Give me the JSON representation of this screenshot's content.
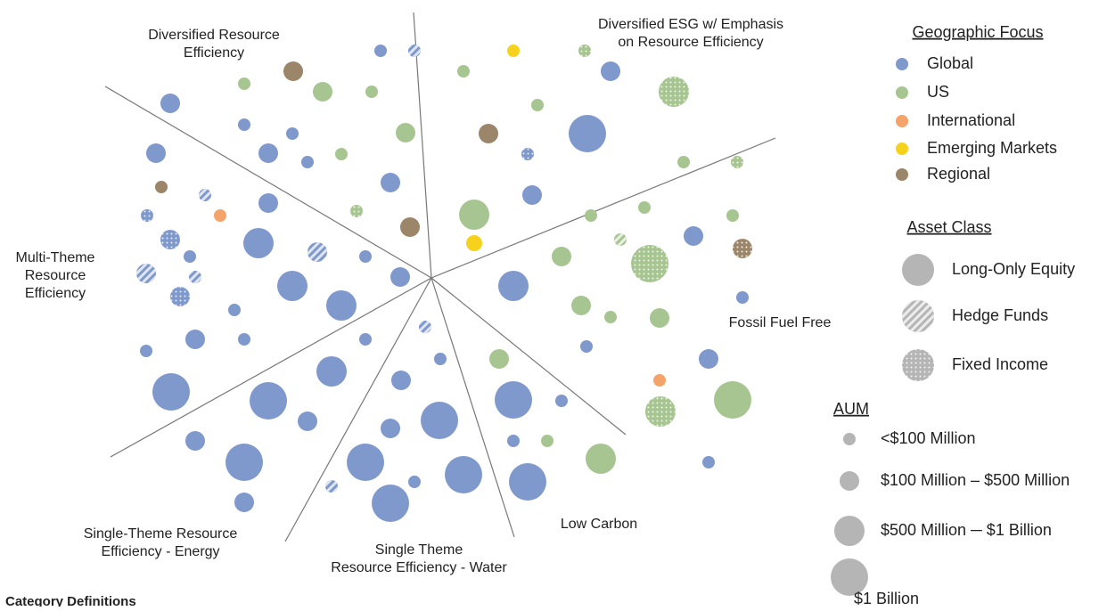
{
  "sectors": [
    {
      "label": [
        "Diversified Resource",
        "Efficiency"
      ]
    },
    {
      "label": [
        "Diversified ESG w/ Emphasis",
        "on Resource Efficiency"
      ]
    },
    {
      "label": [
        "Multi-Theme",
        "Resource",
        "Efficiency"
      ]
    },
    {
      "label": [
        "Fossil Fuel Free"
      ]
    },
    {
      "label": [
        "Single-Theme Resource",
        "Efficiency - Energy"
      ]
    },
    {
      "label": [
        "Single Theme",
        "Resource Efficiency - Water"
      ]
    },
    {
      "label": [
        "Low Carbon"
      ]
    }
  ],
  "legend": {
    "geographic": {
      "title": "Geographic Focus",
      "items": [
        {
          "label": "Global",
          "color": "#7f99cc"
        },
        {
          "label": "US",
          "color": "#a7c590"
        },
        {
          "label": "International",
          "color": "#f4a46a"
        },
        {
          "label": "Emerging Markets",
          "color": "#f6d21c"
        },
        {
          "label": "Regional",
          "color": "#9c866a"
        }
      ]
    },
    "asset_class": {
      "title": "Asset Class",
      "items": [
        "Long-Only Equity",
        "Hedge Funds",
        "Fixed Income"
      ]
    },
    "aum": {
      "title": "AUM",
      "items": [
        "<$100 Million",
        "$100 Million – $500 Million",
        "$500 Million ─ $1 Billion",
        "$1 Billion"
      ]
    }
  },
  "footer": "Category Definitions"
}
